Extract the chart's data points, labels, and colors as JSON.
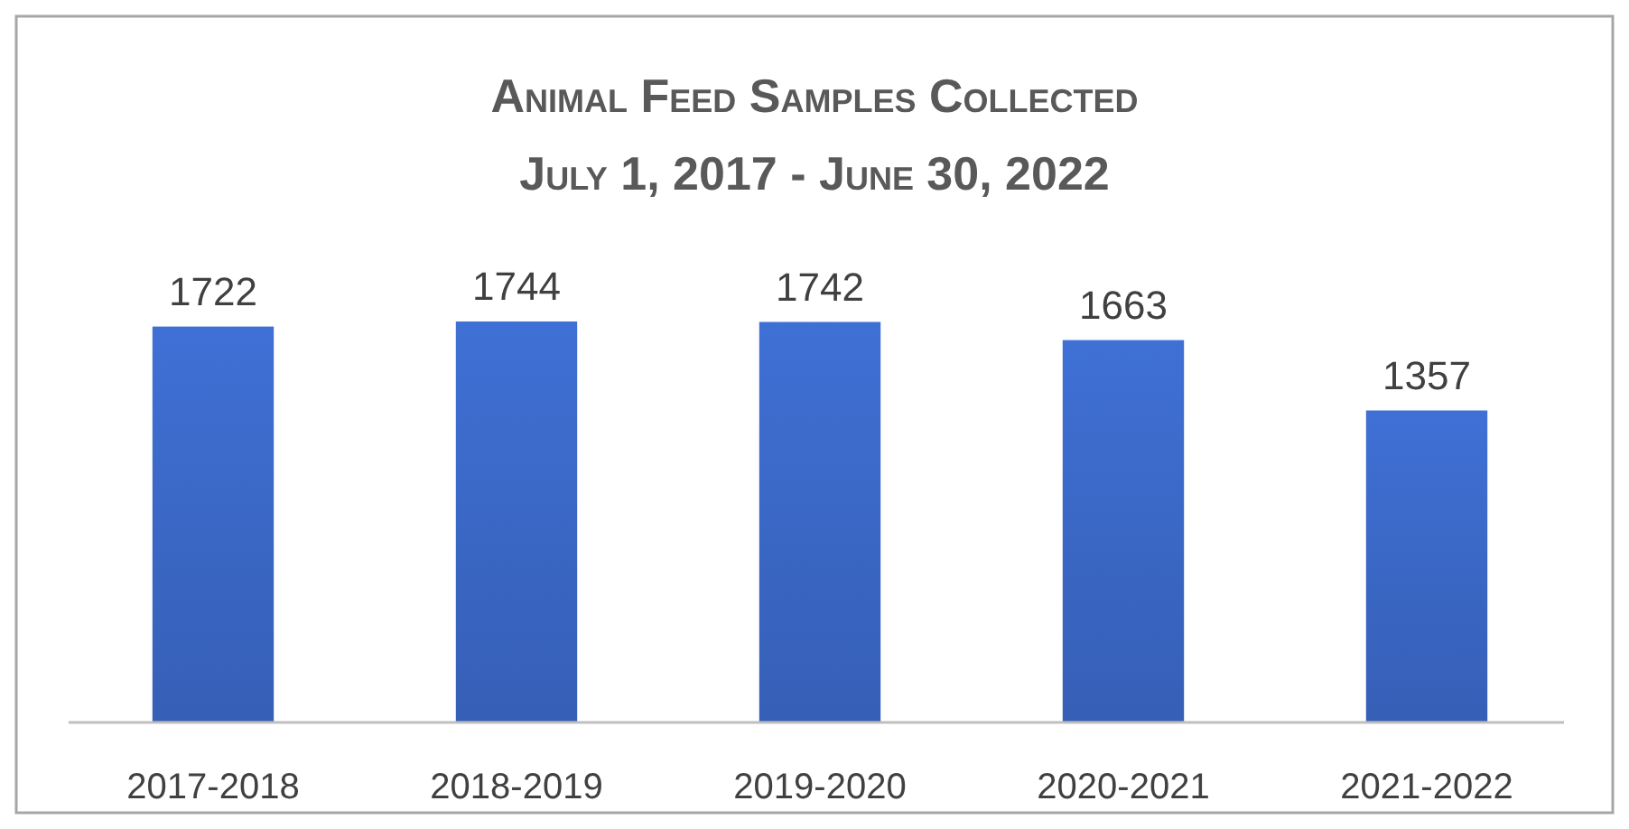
{
  "chart_data": {
    "type": "bar",
    "title": "Animal Feed Samples Collected",
    "subtitle": "July 1, 2017 - June 30, 2022",
    "categories": [
      "2017-2018",
      "2018-2019",
      "2019-2020",
      "2020-2021",
      "2021-2022"
    ],
    "values": [
      1722,
      1744,
      1742,
      1663,
      1357
    ],
    "color": "#3a66c3",
    "data_labels": true
  }
}
